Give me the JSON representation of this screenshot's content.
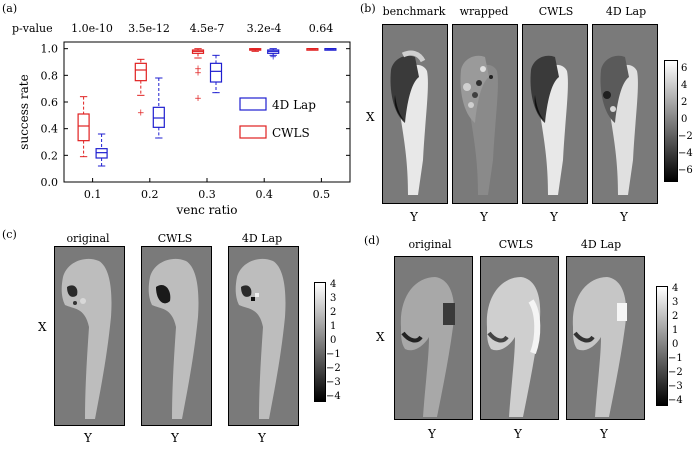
{
  "panel_a": {
    "letter": "(a)",
    "pvalue_label": "p-value",
    "pvalues": [
      "1.0e-10",
      "3.5e-12",
      "4.5e-7",
      "3.2e-4",
      "0.64"
    ],
    "colors": {
      "lap": "#1f1fd0",
      "cwls": "#e02020"
    },
    "chart_data": {
      "type": "box",
      "xlabel": "venc ratio",
      "ylabel": "success rate",
      "ylim": [
        0,
        1.05
      ],
      "yticks": [
        "0.0",
        "0.2",
        "0.4",
        "0.6",
        "0.8",
        "1.0"
      ],
      "categories": [
        "0.1",
        "0.2",
        "0.3",
        "0.4",
        "0.5"
      ],
      "series": [
        {
          "name": "CWLS",
          "color": "#e02020",
          "boxes": [
            {
              "whislo": 0.19,
              "q1": 0.31,
              "med": 0.42,
              "q3": 0.51,
              "whishi": 0.64,
              "fliers": []
            },
            {
              "whislo": 0.65,
              "q1": 0.76,
              "med": 0.84,
              "q3": 0.89,
              "whishi": 0.92,
              "fliers": [
                0.52
              ]
            },
            {
              "whislo": 0.93,
              "q1": 0.965,
              "med": 0.98,
              "q3": 0.99,
              "whishi": 1.0,
              "fliers": [
                0.85,
                0.82,
                0.63
              ]
            },
            {
              "whislo": 0.98,
              "q1": 0.99,
              "med": 0.995,
              "q3": 1.0,
              "whishi": 1.0,
              "fliers": []
            },
            {
              "whislo": 0.99,
              "q1": 0.995,
              "med": 1.0,
              "q3": 1.0,
              "whishi": 1.0,
              "fliers": []
            }
          ]
        },
        {
          "name": "4D Lap",
          "color": "#1f1fd0",
          "boxes": [
            {
              "whislo": 0.12,
              "q1": 0.18,
              "med": 0.22,
              "q3": 0.25,
              "whishi": 0.36,
              "fliers": []
            },
            {
              "whislo": 0.33,
              "q1": 0.41,
              "med": 0.48,
              "q3": 0.56,
              "whishi": 0.78,
              "fliers": []
            },
            {
              "whislo": 0.67,
              "q1": 0.75,
              "med": 0.83,
              "q3": 0.89,
              "whishi": 0.95,
              "fliers": []
            },
            {
              "whislo": 0.95,
              "q1": 0.965,
              "med": 0.98,
              "q3": 0.99,
              "whishi": 1.0,
              "fliers": [
                0.94
              ]
            },
            {
              "whislo": 0.99,
              "q1": 0.995,
              "med": 1.0,
              "q3": 1.0,
              "whishi": 1.0,
              "fliers": []
            }
          ]
        }
      ],
      "legend": [
        "4D Lap",
        "CWLS"
      ]
    }
  },
  "panel_b": {
    "letter": "(b)",
    "titles": [
      "benchmark",
      "wrapped",
      "CWLS",
      "4D Lap"
    ],
    "xaxis": "Y",
    "yaxis": "X",
    "colorbar_ticks": [
      "6",
      "4",
      "2",
      "0",
      "−2",
      "−4",
      "−6"
    ]
  },
  "panel_c": {
    "letter": "(c)",
    "titles": [
      "original",
      "CWLS",
      "4D Lap"
    ],
    "xaxis": "Y",
    "yaxis": "X",
    "colorbar_ticks": [
      "4",
      "3",
      "2",
      "1",
      "0",
      "−1",
      "−2",
      "−3",
      "−4"
    ]
  },
  "panel_d": {
    "letter": "(d)",
    "titles": [
      "original",
      "CWLS",
      "4D Lap"
    ],
    "xaxis": "Y",
    "yaxis": "X",
    "colorbar_ticks": [
      "4",
      "3",
      "2",
      "1",
      "0",
      "−1",
      "−2",
      "−3",
      "−4"
    ]
  }
}
